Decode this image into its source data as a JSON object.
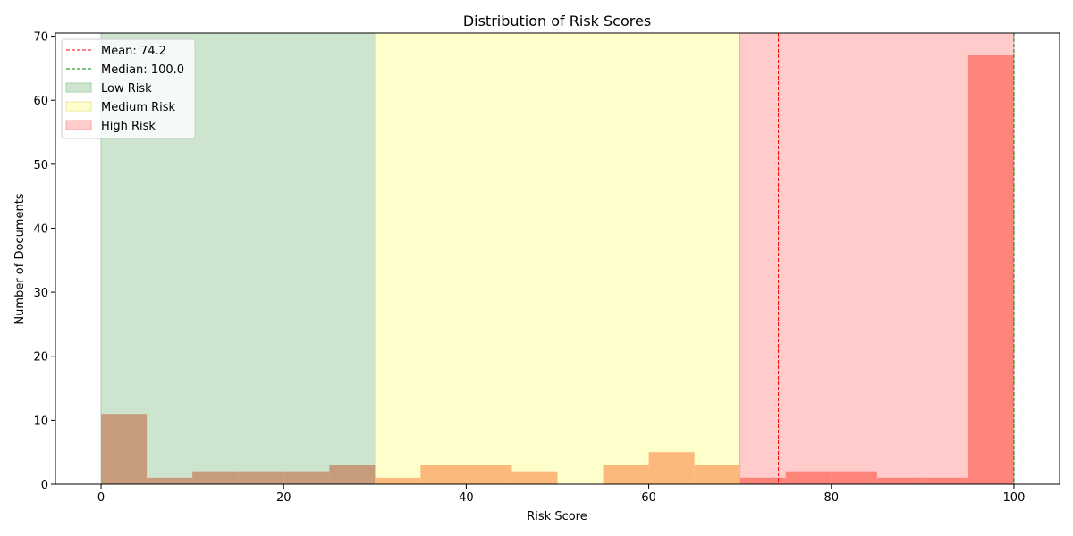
{
  "chart_data": {
    "type": "bar",
    "title": "Distribution of Risk Scores",
    "xlabel": "Risk Score",
    "ylabel": "Number of Documents",
    "xlim": [
      -5,
      105
    ],
    "ylim": [
      0,
      70.5
    ],
    "x_ticks": [
      0,
      20,
      40,
      60,
      80,
      100
    ],
    "y_ticks": [
      0,
      10,
      20,
      30,
      40,
      50,
      60,
      70
    ],
    "bin_width": 5,
    "bins": [
      {
        "start": 0,
        "count": 11,
        "color": "#c69c7c"
      },
      {
        "start": 5,
        "count": 1,
        "color": "#c69c7c"
      },
      {
        "start": 10,
        "count": 2,
        "color": "#c69c7c"
      },
      {
        "start": 15,
        "count": 2,
        "color": "#c69c7c"
      },
      {
        "start": 20,
        "count": 2,
        "color": "#c69c7c"
      },
      {
        "start": 25,
        "count": 3,
        "color": "#c69c7c"
      },
      {
        "start": 30,
        "count": 1,
        "color": "#fbb97b"
      },
      {
        "start": 35,
        "count": 3,
        "color": "#fbb97b"
      },
      {
        "start": 40,
        "count": 3,
        "color": "#fbb97b"
      },
      {
        "start": 45,
        "count": 2,
        "color": "#fbb97b"
      },
      {
        "start": 50,
        "count": 0,
        "color": "#fbb97b"
      },
      {
        "start": 55,
        "count": 3,
        "color": "#fbb97b"
      },
      {
        "start": 60,
        "count": 5,
        "color": "#fbb97b"
      },
      {
        "start": 65,
        "count": 3,
        "color": "#fbb97b"
      },
      {
        "start": 70,
        "count": 1,
        "color": "#fc8478"
      },
      {
        "start": 75,
        "count": 2,
        "color": "#fc8478"
      },
      {
        "start": 80,
        "count": 2,
        "color": "#fc8478"
      },
      {
        "start": 85,
        "count": 1,
        "color": "#fc8478"
      },
      {
        "start": 90,
        "count": 1,
        "color": "#fc8478"
      },
      {
        "start": 95,
        "count": 67,
        "color": "#fc8478"
      }
    ],
    "regions": [
      {
        "name": "Low Risk",
        "from": 0,
        "to": 30,
        "color": "#cde5cf",
        "edge": "#a8d1a8"
      },
      {
        "name": "Medium Risk",
        "from": 30,
        "to": 70,
        "color": "#ffffcc",
        "edge": "#e8e8a0"
      },
      {
        "name": "High Risk",
        "from": 70,
        "to": 100,
        "color": "#ffcbcb",
        "edge": "#f5a8a8"
      }
    ],
    "lines": [
      {
        "name": "Mean: 74.2",
        "value": 74.2,
        "color": "#ff0000"
      },
      {
        "name": "Median: 100.0",
        "value": 100.0,
        "color": "#008000"
      }
    ],
    "legend_position": "top-left",
    "grid": false
  }
}
